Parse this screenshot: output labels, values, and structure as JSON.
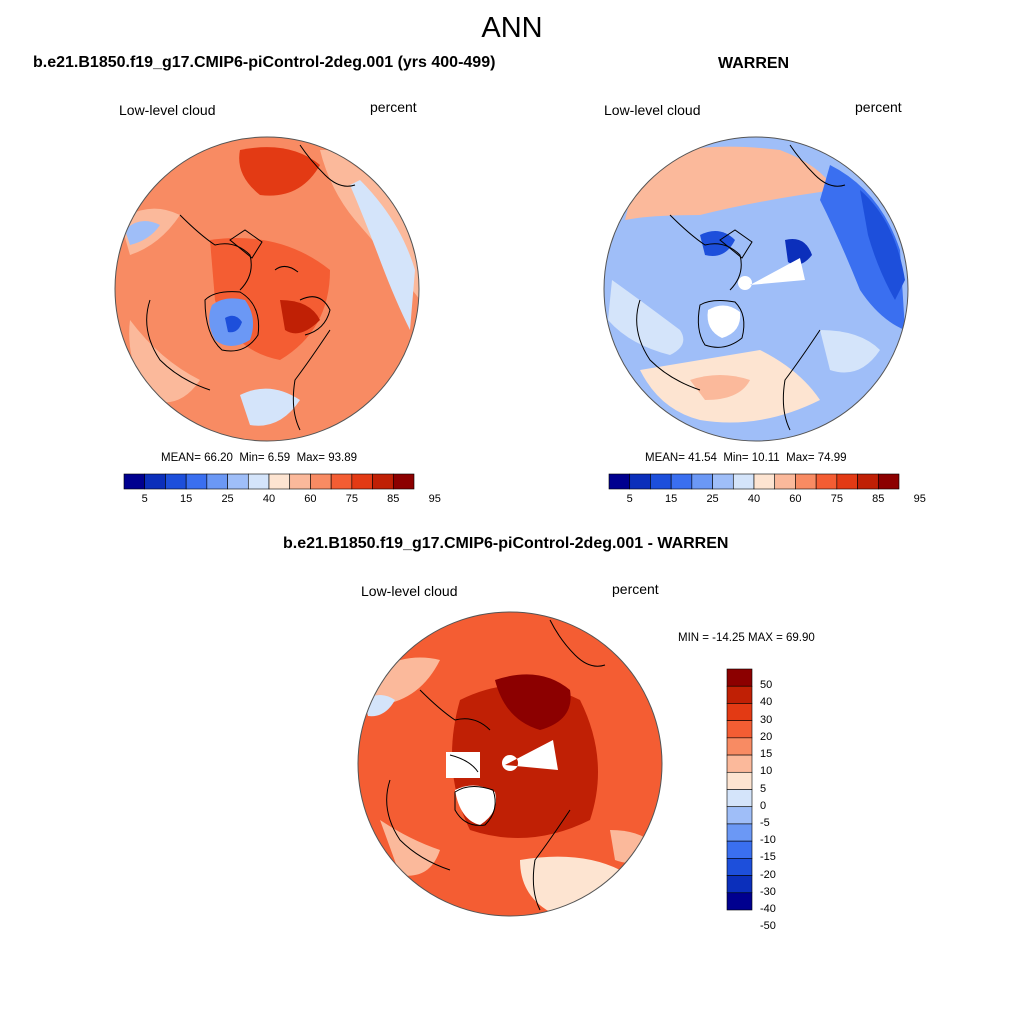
{
  "main_title": "ANN",
  "colors": {
    "abs_scale": [
      "#00008f",
      "#0b2fbb",
      "#1d4fdb",
      "#3a6ff0",
      "#6b98f5",
      "#9fbef8",
      "#d4e4fa",
      "#fde4d1",
      "#fbb99b",
      "#f88b63",
      "#f45d33",
      "#e33a14",
      "#c02005",
      "#8c0000"
    ],
    "diff_scale": [
      "#00008f",
      "#0b2fbb",
      "#1d4fdb",
      "#3a6ff0",
      "#6b98f5",
      "#9fbef8",
      "#d4e4fa",
      "#fde4d1",
      "#fbb99b",
      "#f88b63",
      "#f45d33",
      "#e33a14",
      "#c02005",
      "#8c0000"
    ],
    "coast": "#000000"
  },
  "panels": {
    "model": {
      "title": "b.e21.B1850.f19_g17.CMIP6-piControl-2deg.001 (yrs 400-499)",
      "variable": "Low-level cloud",
      "units": "percent",
      "mean_label": "MEAN=",
      "mean": "66.20",
      "min_label": "Min=",
      "min": "6.59",
      "max_label": "Max=",
      "max": "93.89",
      "colorbar_ticks": [
        "5",
        "15",
        "25",
        "40",
        "60",
        "75",
        "85",
        "95"
      ]
    },
    "obs": {
      "title": "WARREN",
      "variable": "Low-level cloud",
      "units": "percent",
      "mean_label": "MEAN=",
      "mean": "41.54",
      "min_label": "Min=",
      "min": "10.11",
      "max_label": "Max=",
      "max": "74.99",
      "colorbar_ticks": [
        "5",
        "15",
        "25",
        "40",
        "60",
        "75",
        "85",
        "95"
      ]
    },
    "diff": {
      "title": "b.e21.B1850.f19_g17.CMIP6-piControl-2deg.001 - WARREN",
      "variable": "Low-level cloud",
      "units": "percent",
      "minmax": "MIN = -14.25 MAX =  69.90",
      "colorbar_ticks": [
        "50",
        "40",
        "30",
        "20",
        "15",
        "10",
        "5",
        "0",
        "-5",
        "-10",
        "-15",
        "-20",
        "-30",
        "-40",
        "-50"
      ]
    }
  }
}
